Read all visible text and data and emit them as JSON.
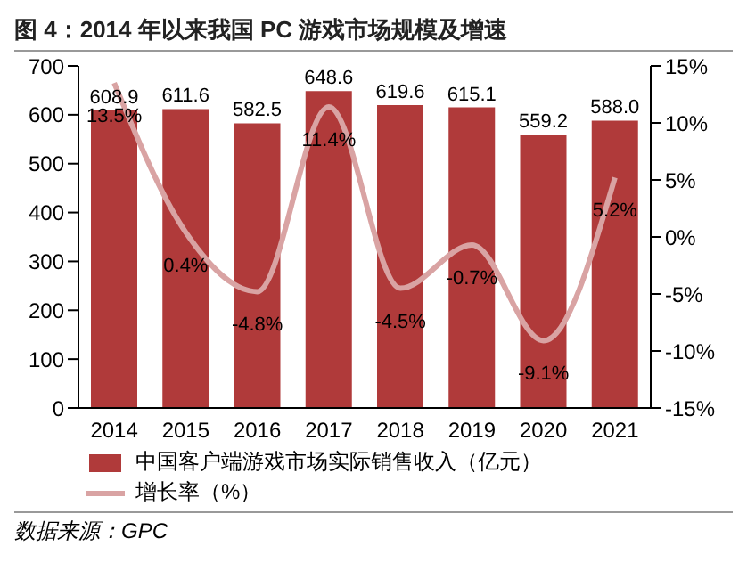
{
  "chart_data": {
    "type": "bar",
    "title": "图 4：2014 年以来我国 PC 游戏市场规模及增速",
    "categories": [
      "2014",
      "2015",
      "2016",
      "2017",
      "2018",
      "2019",
      "2020",
      "2021"
    ],
    "series": [
      {
        "name": "中国客户端游戏市场实际销售收入（亿元）",
        "color": "#b03a3a",
        "values": [
          608.9,
          611.6,
          582.5,
          648.6,
          619.6,
          615.1,
          559.2,
          588.0
        ],
        "value_labels": [
          "608.9",
          "611.6",
          "582.5",
          "648.6",
          "619.6",
          "615.1",
          "559.2",
          "588.0"
        ]
      },
      {
        "name": "增长率（%）",
        "type": "line",
        "axis": "y2",
        "color": "#d9a3a3",
        "values": [
          13.5,
          0.4,
          -4.8,
          11.4,
          -4.5,
          -0.7,
          -9.1,
          5.2
        ],
        "value_labels": [
          "13.5%",
          "0.4%",
          "-4.8%",
          "11.4%",
          "-4.5%",
          "-0.7%",
          "-9.1%",
          "5.2%"
        ]
      }
    ],
    "ylim": [
      0,
      700
    ],
    "yticks": [
      0,
      100,
      200,
      300,
      400,
      500,
      600,
      700
    ],
    "y2lim": [
      -15,
      15
    ],
    "y2ticks": [
      {
        "value": -15,
        "label": "-15%"
      },
      {
        "value": -10,
        "label": "-10%"
      },
      {
        "value": -5,
        "label": "-5%"
      },
      {
        "value": 0,
        "label": "0%"
      },
      {
        "value": 5,
        "label": "5%"
      },
      {
        "value": 10,
        "label": "10%"
      },
      {
        "value": 15,
        "label": "15%"
      }
    ],
    "legend": "bottom",
    "grid": false,
    "annotations": [
      "数据来源：GPC"
    ]
  }
}
